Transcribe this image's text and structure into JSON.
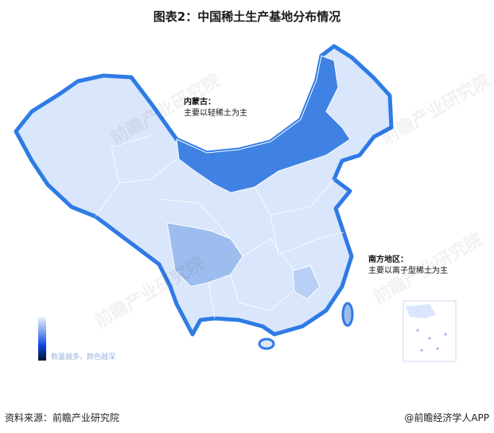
{
  "title": "图表2：中国稀土生产基地分布情况",
  "annotations": [
    {
      "heading": "内蒙古：",
      "text": "主要以轻稀土为主"
    },
    {
      "heading": "南方地区：",
      "text": "主要以离子型稀土为主"
    }
  ],
  "legend": {
    "text": "数量越多，颜色越深",
    "colors": [
      "#eef3ff",
      "#0b43e0",
      "#051233"
    ]
  },
  "colors": {
    "base": "#d9e6fb",
    "inner_mongolia": "#3f82e3",
    "sichuan": "#9dbdee",
    "border": "#2f7be6"
  },
  "watermark": "前瞻产业研究院",
  "footer": {
    "source": "资料来源：前瞻产业研究院",
    "brand": "@前瞻经济学人APP"
  }
}
